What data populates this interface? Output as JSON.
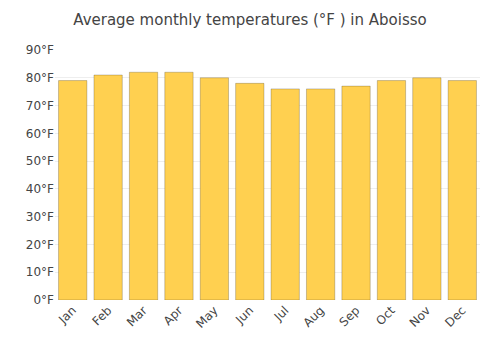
{
  "chart_data": {
    "type": "bar",
    "title": "Average monthly temperatures (°F ) in Aboisso",
    "categories": [
      "Jan",
      "Feb",
      "Mar",
      "Apr",
      "May",
      "Jun",
      "Jul",
      "Aug",
      "Sep",
      "Oct",
      "Nov",
      "Dec"
    ],
    "values": [
      79,
      81,
      82,
      82,
      80,
      78,
      76,
      76,
      77,
      79,
      80,
      79
    ],
    "color": "#FFD050",
    "ylim": [
      0,
      90
    ],
    "yticks": [
      {
        "value": 0,
        "label": "0°F"
      },
      {
        "value": 10,
        "label": "10°F"
      },
      {
        "value": 20,
        "label": "20°F"
      },
      {
        "value": 30,
        "label": "30°F"
      },
      {
        "value": 40,
        "label": "40°F"
      },
      {
        "value": 50,
        "label": "50°F"
      },
      {
        "value": 60,
        "label": "60°F"
      },
      {
        "value": 70,
        "label": "70°F"
      },
      {
        "value": 80,
        "label": "80°F"
      },
      {
        "value": 90,
        "label": "90°F"
      }
    ],
    "grid": true
  }
}
